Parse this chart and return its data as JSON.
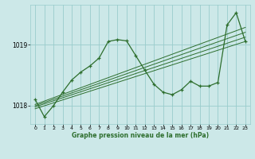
{
  "bg_color": "#cce8e8",
  "grid_color": "#99cccc",
  "line_color": "#2d6e2d",
  "xlabel": "Graphe pression niveau de la mer (hPa)",
  "xlim": [
    -0.5,
    23.5
  ],
  "ylim": [
    1017.7,
    1019.65
  ],
  "yticks": [
    1018,
    1019
  ],
  "xticks": [
    0,
    1,
    2,
    3,
    4,
    5,
    6,
    7,
    8,
    9,
    10,
    11,
    12,
    13,
    14,
    15,
    16,
    17,
    18,
    19,
    20,
    21,
    22,
    23
  ],
  "wavy_x": [
    0,
    1,
    2,
    3,
    4,
    5,
    6,
    7,
    8,
    9,
    10,
    11,
    12,
    13,
    14,
    15,
    16,
    17,
    18,
    19,
    20,
    21,
    22,
    23
  ],
  "wavy_y": [
    1018.1,
    1017.82,
    1018.0,
    1018.22,
    1018.42,
    1018.55,
    1018.65,
    1018.78,
    1019.05,
    1019.08,
    1019.06,
    1018.82,
    1018.58,
    1018.35,
    1018.22,
    1018.18,
    1018.26,
    1018.4,
    1018.32,
    1018.32,
    1018.38,
    1019.32,
    1019.52,
    1019.05
  ],
  "ref_lines": [
    {
      "x": [
        0,
        23
      ],
      "y": [
        1017.95,
        1019.05
      ]
    },
    {
      "x": [
        0,
        23
      ],
      "y": [
        1017.98,
        1019.12
      ]
    },
    {
      "x": [
        0,
        23
      ],
      "y": [
        1018.0,
        1019.2
      ]
    },
    {
      "x": [
        0,
        23
      ],
      "y": [
        1018.02,
        1019.28
      ]
    }
  ]
}
